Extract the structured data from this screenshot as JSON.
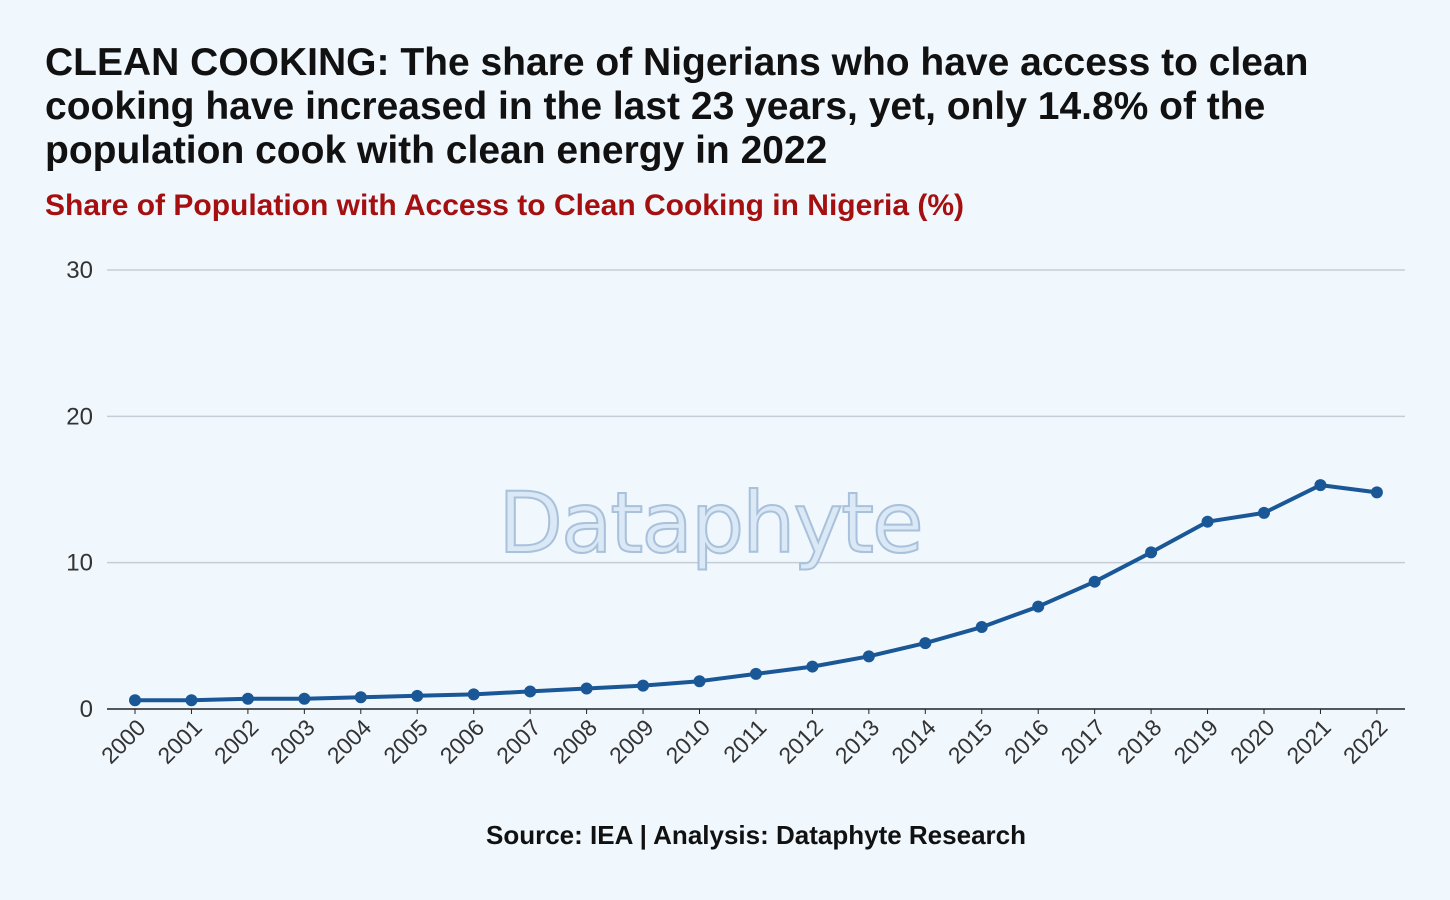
{
  "chart_data": {
    "type": "line",
    "title": "CLEAN COOKING: The share of Nigerians who have access to clean cooking have increased in the last 23 years, yet, only 14.8% of the population cook with clean energy in 2022",
    "subtitle": "Share of Population with Access to Clean Cooking in Nigeria (%)",
    "x": [
      "2000",
      "2001",
      "2002",
      "2003",
      "2004",
      "2005",
      "2006",
      "2007",
      "2008",
      "2009",
      "2010",
      "2011",
      "2012",
      "2013",
      "2014",
      "2015",
      "2016",
      "2017",
      "2018",
      "2019",
      "2020",
      "2021",
      "2022"
    ],
    "series": [
      {
        "values": [
          0.6,
          0.6,
          0.7,
          0.7,
          0.8,
          0.9,
          1.0,
          1.2,
          1.4,
          1.6,
          1.9,
          2.4,
          2.9,
          3.6,
          4.5,
          5.6,
          7.0,
          8.7,
          10.7,
          12.8,
          13.4,
          15.3,
          14.8
        ]
      }
    ],
    "ylim": [
      0,
      30
    ],
    "yticks": [
      0,
      10,
      20,
      30
    ],
    "grid": true,
    "source": "Source: IEA | Analysis: Dataphyte Research",
    "watermark": "Dataphyte",
    "colors": {
      "line": "#1a5796",
      "grid": "#c5cdd6",
      "axis": "#222222",
      "title": "#111111",
      "subtitle": "#a50f0f",
      "background": "#f0f7fd"
    }
  }
}
